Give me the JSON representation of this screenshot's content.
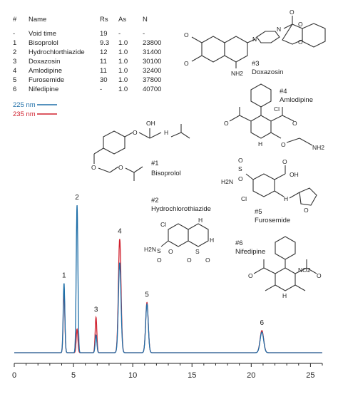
{
  "table": {
    "headers": [
      "#",
      "Name",
      "Rs",
      "As",
      "N"
    ],
    "rows": [
      [
        "-",
        "Void time",
        "19",
        "-",
        "-"
      ],
      [
        "1",
        "Bisoprolol",
        "9.3",
        "1.0",
        "23800"
      ],
      [
        "2",
        "Hydrochlorthiazide",
        "12",
        "1.0",
        "31400"
      ],
      [
        "3",
        "Doxazosin",
        "11",
        "1.0",
        "30100"
      ],
      [
        "4",
        "Amlodipine",
        "11",
        "1.0",
        "32400"
      ],
      [
        "5",
        "Furosemide",
        "30",
        "1.0",
        "37800"
      ],
      [
        "6",
        "Nifedipine",
        "-",
        "1.0",
        "40700"
      ]
    ]
  },
  "legend": [
    {
      "label": "225 nm",
      "color": "#1f6fa8"
    },
    {
      "label": "235 nm",
      "color": "#d0202e"
    }
  ],
  "compounds": [
    {
      "num": "#1",
      "name": "Bisoprolol"
    },
    {
      "num": "#2",
      "name": "Hydrochlorothiazide"
    },
    {
      "num": "#3",
      "name": "Doxazosin"
    },
    {
      "num": "#4",
      "name": "Amlodipine"
    },
    {
      "num": "#5",
      "name": "Furosemide"
    },
    {
      "num": "#6",
      "name": "Nifedipine"
    }
  ],
  "atoms": {
    "oh": "OH",
    "nh": "H",
    "n": "N",
    "o": "O",
    "cl": "Cl",
    "nh2": "NH2",
    "h2n": "H2N",
    "s": "S",
    "no2": "NO2"
  },
  "chart_data": {
    "type": "line",
    "xlabel": "",
    "ylabel": "",
    "xlim": [
      0,
      26
    ],
    "xticks": [
      0,
      5,
      10,
      15,
      20,
      25
    ],
    "grid": false,
    "peaks": [
      {
        "label": "1",
        "rt": 4.2,
        "h225": 0.47,
        "h235": 0.42,
        "w": 0.07
      },
      {
        "label": "2",
        "rt": 5.3,
        "h225": 1.0,
        "h235": 0.16,
        "w": 0.07
      },
      {
        "label": "3",
        "rt": 6.9,
        "h225": 0.12,
        "h235": 0.24,
        "w": 0.07
      },
      {
        "label": "4",
        "rt": 8.9,
        "h225": 0.61,
        "h235": 0.77,
        "w": 0.11
      },
      {
        "label": "5",
        "rt": 11.2,
        "h225": 0.33,
        "h235": 0.34,
        "w": 0.11
      },
      {
        "label": "6",
        "rt": 20.9,
        "h225": 0.14,
        "h235": 0.15,
        "w": 0.15
      }
    ],
    "series": [
      {
        "name": "225 nm",
        "color": "#1f6fa8"
      },
      {
        "name": "235 nm",
        "color": "#d0202e"
      }
    ]
  }
}
